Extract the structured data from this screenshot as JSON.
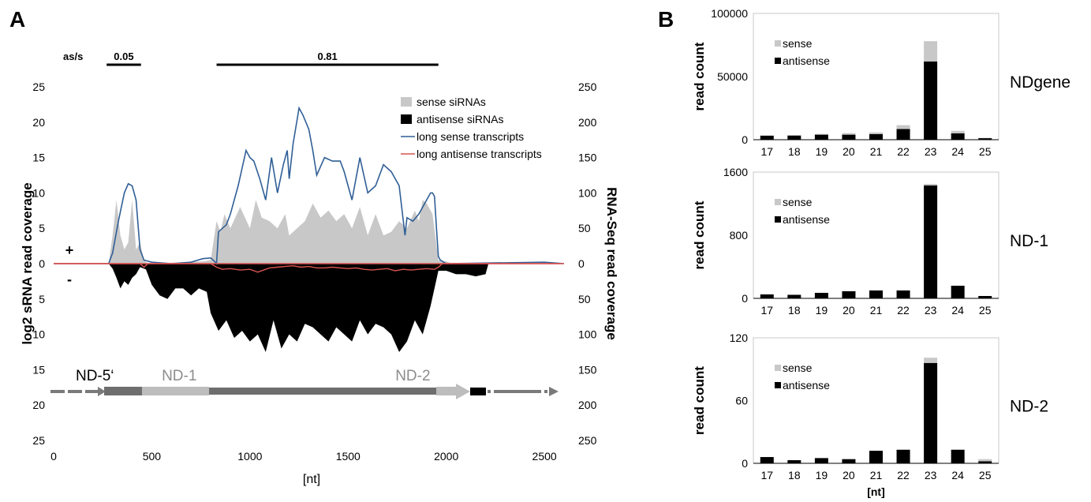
{
  "panel_a": {
    "letter": "A",
    "asratio": {
      "label": "as/s",
      "bars": [
        {
          "text": "0.05",
          "start": 270,
          "end": 445
        },
        {
          "text": "0.81",
          "start": 830,
          "end": 1960
        }
      ]
    },
    "left_ylabel": "log2 sRNA read coverage",
    "right_ylabel": "RNA-Seq read coverage",
    "xlabel": "[nt]",
    "plus": "+",
    "minus": "-",
    "legend": [
      {
        "name": "sense siRNAs",
        "color": "#c8c8c8",
        "kind": "box"
      },
      {
        "name": "antisense siRNAs",
        "color": "#000000",
        "kind": "box"
      },
      {
        "name": "long sense transcripts",
        "color": "#2f5f96",
        "kind": "line"
      },
      {
        "name": "long antisense transcripts",
        "color": "#d9534f",
        "kind": "line"
      }
    ],
    "gene_labels": [
      {
        "text": "ND-5‘",
        "color": "#000000",
        "pos": 210
      },
      {
        "text": "ND-1",
        "color": "#8c8c8c",
        "pos": 640
      },
      {
        "text": "ND-2",
        "color": "#8c8c8c",
        "pos": 1830
      }
    ]
  },
  "chart_data": [
    {
      "type": "area",
      "title": "",
      "xlabel": "[nt]",
      "ylabel": "log2 sRNA read coverage",
      "ylabel_right": "RNA-Seq read coverage",
      "xlim": [
        0,
        2600
      ],
      "xticks": [
        0,
        500,
        1000,
        1500,
        2000,
        2500
      ],
      "ylim": [
        25,
        -25
      ],
      "yticks_left": [
        "25",
        "20",
        "15",
        "10",
        "5",
        "0",
        "5",
        "10",
        "15",
        "20",
        "25"
      ],
      "yticks_right": [
        "250",
        "200",
        "150",
        "100",
        "50",
        "0",
        "50",
        "100",
        "150",
        "200",
        "250"
      ],
      "grid": false,
      "legend_position": "top-right",
      "series": [
        {
          "name": "sense siRNAs",
          "color": "#c8c8c8",
          "x": [
            280,
            300,
            320,
            340,
            360,
            380,
            400,
            420,
            440,
            460,
            480,
            760,
            800,
            830,
            850,
            870,
            900,
            950,
            1000,
            1030,
            1060,
            1100,
            1140,
            1180,
            1200,
            1240,
            1280,
            1320,
            1360,
            1400,
            1440,
            1480,
            1520,
            1560,
            1600,
            1640,
            1680,
            1720,
            1760,
            1800,
            1840,
            1860,
            1880,
            1900,
            1930,
            1960,
            2000,
            2030
          ],
          "y": [
            0,
            4,
            9,
            4,
            2,
            3,
            9,
            2,
            3,
            0.5,
            0,
            0.3,
            0.5,
            6,
            4.5,
            7,
            5,
            8,
            5,
            9,
            6.5,
            6,
            5,
            7,
            4,
            5,
            6,
            8.5,
            6.5,
            7.5,
            6,
            7,
            5,
            8,
            4,
            7,
            4,
            4.5,
            6,
            5,
            7.5,
            6,
            9,
            8.5,
            7,
            0.5,
            0.3,
            0
          ]
        },
        {
          "name": "antisense siRNAs",
          "color": "#000000",
          "x": [
            280,
            300,
            320,
            340,
            360,
            380,
            400,
            420,
            440,
            470,
            500,
            540,
            580,
            620,
            660,
            700,
            740,
            780,
            800,
            840,
            880,
            920,
            960,
            1000,
            1040,
            1080,
            1120,
            1160,
            1200,
            1240,
            1280,
            1320,
            1360,
            1400,
            1440,
            1480,
            1520,
            1560,
            1600,
            1640,
            1680,
            1720,
            1760,
            1800,
            1840,
            1880,
            1920,
            1960,
            2000,
            2050,
            2100,
            2150,
            2200,
            2215
          ],
          "y": [
            0,
            -0.7,
            -2,
            -3.5,
            -2.5,
            -3,
            -2,
            -1.5,
            -0.5,
            -0.8,
            -3,
            -4.5,
            -5,
            -3.5,
            -3.5,
            -4.5,
            -3.5,
            -4,
            -7,
            -9.5,
            -8,
            -10.5,
            -9.5,
            -11,
            -10,
            -12.5,
            -8,
            -12,
            -10,
            -11,
            -8.5,
            -9,
            -10,
            -11,
            -9,
            -10,
            -11,
            -8,
            -10,
            -8.5,
            -9,
            -10,
            -12.5,
            -11,
            -8,
            -10,
            -6,
            -1,
            -1,
            -1.5,
            -1.5,
            -1.8,
            -1.5,
            0
          ]
        },
        {
          "name": "long sense transcripts",
          "color": "#2f5f96",
          "x": [
            0,
            280,
            300,
            330,
            360,
            380,
            400,
            420,
            440,
            460,
            500,
            600,
            700,
            760,
            800,
            820,
            830,
            840,
            880,
            900,
            940,
            980,
            1000,
            1020,
            1050,
            1080,
            1110,
            1140,
            1170,
            1190,
            1200,
            1220,
            1250,
            1270,
            1300,
            1320,
            1340,
            1380,
            1420,
            1460,
            1480,
            1520,
            1560,
            1600,
            1640,
            1680,
            1720,
            1760,
            1790,
            1800,
            1830,
            1860,
            1900,
            1920,
            1930,
            1940,
            1950,
            1960,
            1970,
            2000,
            2500,
            2600
          ],
          "y": [
            0,
            0,
            15,
            60,
            100,
            113,
            110,
            90,
            20,
            5,
            2,
            0,
            2,
            7,
            8,
            3,
            0,
            45,
            55,
            70,
            110,
            160,
            150,
            145,
            120,
            90,
            150,
            100,
            140,
            160,
            120,
            170,
            220,
            210,
            190,
            160,
            125,
            150,
            145,
            145,
            130,
            90,
            150,
            100,
            110,
            140,
            130,
            110,
            40,
            65,
            60,
            70,
            90,
            100,
            100,
            95,
            50,
            10,
            5,
            0,
            2,
            0
          ]
        },
        {
          "name": "long antisense transcripts",
          "color": "#d9534f",
          "x": [
            0,
            440,
            460,
            480,
            800,
            830,
            860,
            900,
            950,
            1000,
            1040,
            1080,
            1100,
            1140,
            1180,
            1220,
            1260,
            1300,
            1340,
            1380,
            1420,
            1460,
            1500,
            1540,
            1580,
            1620,
            1660,
            1700,
            1740,
            1780,
            1820,
            1860,
            1900,
            1940,
            1960,
            1980,
            2600
          ],
          "y": [
            0,
            0,
            -5,
            0,
            0,
            -5,
            -8,
            -7,
            -9,
            -8,
            -12,
            -8,
            -6,
            -5,
            -4,
            -3,
            -5,
            -4,
            -6,
            -6,
            -5,
            -6,
            -7,
            -6,
            -8,
            -9,
            -8,
            -7,
            -10,
            -8,
            -9,
            -8,
            -7,
            -8,
            -5,
            0,
            0
          ]
        }
      ]
    },
    {
      "type": "bar",
      "label": "NDgene",
      "categories": [
        "17",
        "18",
        "19",
        "20",
        "21",
        "22",
        "23",
        "24",
        "25"
      ],
      "ylim": [
        0,
        100000
      ],
      "yticks": [
        0,
        50000,
        100000
      ],
      "ylabel": "read count",
      "xlabel": "",
      "legend_position": "top-left",
      "series": [
        {
          "name": "antisense",
          "color": "#000000",
          "values": [
            3200,
            3300,
            4000,
            4000,
            4500,
            8500,
            62000,
            5000,
            1200
          ]
        },
        {
          "name": "sense",
          "color": "#c8c8c8",
          "values": [
            300,
            400,
            600,
            1200,
            1300,
            3000,
            16000,
            2000,
            300
          ]
        }
      ]
    },
    {
      "type": "bar",
      "label": "ND-1",
      "categories": [
        "17",
        "18",
        "19",
        "20",
        "21",
        "22",
        "23",
        "24",
        "25"
      ],
      "ylim": [
        0,
        1600
      ],
      "yticks": [
        0,
        800,
        1600
      ],
      "ylabel": "read count",
      "xlabel": "",
      "legend_position": "top-left",
      "series": [
        {
          "name": "antisense",
          "color": "#000000",
          "values": [
            50,
            45,
            70,
            90,
            100,
            100,
            1430,
            160,
            30
          ]
        },
        {
          "name": "sense",
          "color": "#c8c8c8",
          "values": [
            0,
            0,
            0,
            0,
            0,
            0,
            20,
            0,
            0
          ]
        }
      ]
    },
    {
      "type": "bar",
      "label": "ND-2",
      "categories": [
        "17",
        "18",
        "19",
        "20",
        "21",
        "22",
        "23",
        "24",
        "25"
      ],
      "ylim": [
        0,
        120
      ],
      "yticks": [
        0,
        60,
        120
      ],
      "ylabel": "read count",
      "xlabel": "[nt]",
      "legend_position": "top-left",
      "series": [
        {
          "name": "antisense",
          "color": "#000000",
          "values": [
            6,
            3,
            5,
            4,
            12,
            13,
            96,
            13,
            2
          ]
        },
        {
          "name": "sense",
          "color": "#c8c8c8",
          "values": [
            0,
            0,
            0,
            0,
            0,
            0,
            5,
            0,
            2
          ]
        }
      ]
    }
  ],
  "panel_b": {
    "letter": "B"
  }
}
